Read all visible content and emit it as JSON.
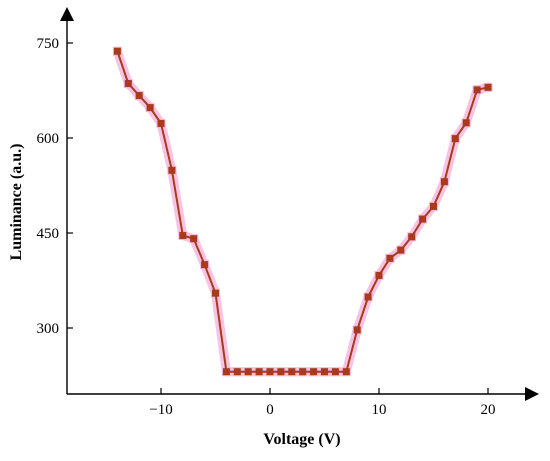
{
  "chart_data": {
    "type": "line",
    "title": "",
    "xlabel": "Voltage (V)",
    "ylabel": "Luminance (a.u.)",
    "xlim": [
      -20,
      23
    ],
    "ylim": [
      200,
      800
    ],
    "x_ticks": [
      -10,
      0,
      10,
      20
    ],
    "x_tick_labels": [
      "−10",
      "0",
      "10",
      "20"
    ],
    "y_ticks": [
      300,
      450,
      600,
      750
    ],
    "y_tick_labels": [
      "300",
      "450",
      "600",
      "750"
    ],
    "grid": false,
    "legend": "none",
    "series": [
      {
        "color": "#a93a1e",
        "glow_color": "#f5b8de",
        "marker": "square",
        "points": [
          {
            "x": -14,
            "y": 737
          },
          {
            "x": -13,
            "y": 686
          },
          {
            "x": -12,
            "y": 667
          },
          {
            "x": -11,
            "y": 648
          },
          {
            "x": -10,
            "y": 623
          },
          {
            "x": -9,
            "y": 549
          },
          {
            "x": -8,
            "y": 446
          },
          {
            "x": -7,
            "y": 441
          },
          {
            "x": -6,
            "y": 400
          },
          {
            "x": -5,
            "y": 355
          },
          {
            "x": -4,
            "y": 231
          },
          {
            "x": -3,
            "y": 231
          },
          {
            "x": -2,
            "y": 231
          },
          {
            "x": -1,
            "y": 231
          },
          {
            "x": 0,
            "y": 231
          },
          {
            "x": 1,
            "y": 231
          },
          {
            "x": 2,
            "y": 231
          },
          {
            "x": 3,
            "y": 231
          },
          {
            "x": 4,
            "y": 231
          },
          {
            "x": 5,
            "y": 231
          },
          {
            "x": 6,
            "y": 231
          },
          {
            "x": 7,
            "y": 231
          },
          {
            "x": 8,
            "y": 297
          },
          {
            "x": 9,
            "y": 349
          },
          {
            "x": 10,
            "y": 383
          },
          {
            "x": 11,
            "y": 410
          },
          {
            "x": 12,
            "y": 423
          },
          {
            "x": 13,
            "y": 444
          },
          {
            "x": 14,
            "y": 472
          },
          {
            "x": 15,
            "y": 492
          },
          {
            "x": 16,
            "y": 531
          },
          {
            "x": 17,
            "y": 599
          },
          {
            "x": 18,
            "y": 624
          },
          {
            "x": 19,
            "y": 676
          },
          {
            "x": 20,
            "y": 680
          }
        ]
      }
    ]
  }
}
